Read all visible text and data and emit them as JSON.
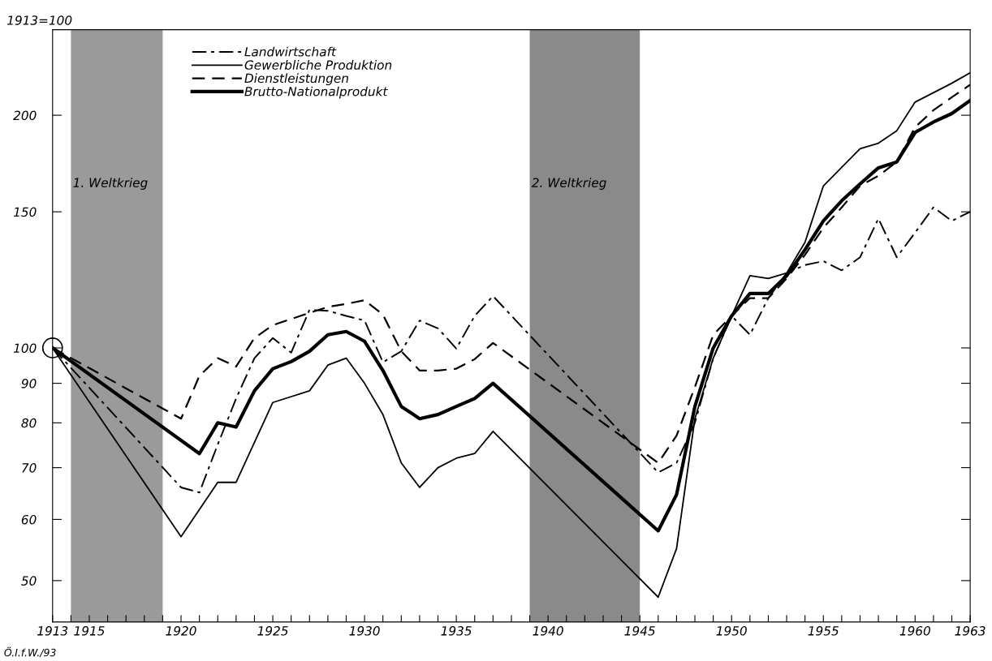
{
  "chart_data": {
    "type": "line",
    "ylabel": "1913=100",
    "annotations": [
      "Ö.I.f.W./93"
    ],
    "log": "y",
    "xlim": [
      1913,
      1963
    ],
    "xticks": [
      1913,
      {
        "value": 1914,
        "label": null
      },
      1915,
      {
        "value": 1916,
        "label": null
      },
      {
        "value": 1917,
        "label": null
      },
      {
        "value": 1918,
        "label": null
      },
      {
        "value": 1919,
        "label": null
      },
      1920,
      {
        "value": 1921,
        "label": null
      },
      {
        "value": 1922,
        "label": null
      },
      {
        "value": 1923,
        "label": null
      },
      {
        "value": 1924,
        "label": null
      },
      1925,
      {
        "value": 1926,
        "label": null
      },
      {
        "value": 1927,
        "label": null
      },
      {
        "value": 1928,
        "label": null
      },
      {
        "value": 1929,
        "label": null
      },
      1930,
      {
        "value": 1931,
        "label": null
      },
      {
        "value": 1932,
        "label": null
      },
      {
        "value": 1933,
        "label": null
      },
      {
        "value": 1934,
        "label": null
      },
      1935,
      {
        "value": 1936,
        "label": null
      },
      {
        "value": 1937,
        "label": null
      },
      {
        "value": 1938,
        "label": null
      },
      {
        "value": 1939,
        "label": null
      },
      1940,
      {
        "value": 1941,
        "label": null
      },
      {
        "value": 1942,
        "label": null
      },
      {
        "value": 1943,
        "label": null
      },
      {
        "value": 1944,
        "label": null
      },
      1945,
      {
        "value": 1946,
        "label": null
      },
      {
        "value": 1947,
        "label": null
      },
      {
        "value": 1948,
        "label": null
      },
      {
        "value": 1949,
        "label": null
      },
      1950,
      {
        "value": 1951,
        "label": null
      },
      {
        "value": 1952,
        "label": null
      },
      {
        "value": 1953,
        "label": null
      },
      {
        "value": 1954,
        "label": null
      },
      1955,
      {
        "value": 1956,
        "label": null
      },
      {
        "value": 1957,
        "label": null
      },
      {
        "value": 1958,
        "label": null
      },
      {
        "value": 1959,
        "label": null
      },
      1960,
      {
        "value": 1961,
        "label": null
      },
      {
        "value": 1962,
        "label": null
      },
      1963
    ],
    "ylim": [
      44.2,
      258
    ],
    "yticks": [
      50,
      60,
      70,
      80,
      90,
      100,
      150,
      200
    ],
    "grid": false,
    "legend": "top left",
    "marker": "none",
    "bands": [
      {
        "axis": "x",
        "from": 1914,
        "to": 1919,
        "label": "1. Weltkrieg",
        "color": "#9a9a9a"
      },
      {
        "axis": "x",
        "from": 1939,
        "to": 1945,
        "label": "2. Weltkrieg",
        "color": "#8a8a8a"
      }
    ],
    "series": [
      {
        "name": "Landwirtschaft",
        "color": "#000000",
        "line_style": "dashdot",
        "x": [
          1913,
          1920,
          1921,
          1922,
          1923,
          1924,
          1925,
          1926,
          1927,
          1928,
          1929,
          1930,
          1931,
          1932,
          1933,
          1934,
          1935,
          1936,
          1937,
          1946,
          1947,
          1948,
          1949,
          1950,
          1951,
          1952,
          1953,
          1954,
          1955,
          1956,
          1957,
          1958,
          1959,
          1960,
          1961,
          1962,
          1963
        ],
        "values": [
          100,
          66,
          65,
          75,
          86,
          97,
          103,
          98.6,
          112,
          111.7,
          110,
          108.5,
          95.8,
          99,
          108.5,
          106,
          99.8,
          110,
          116.7,
          69,
          71,
          80,
          97,
          110,
          104,
          116,
          125,
          128,
          129.5,
          126,
          131,
          147,
          131,
          141,
          152,
          146,
          150
        ]
      },
      {
        "name": "Gewerbliche Produktion",
        "color": "#000000",
        "line_style": "solid",
        "x": [
          1913,
          1920,
          1922,
          1923,
          1925,
          1927,
          1928,
          1929,
          1930,
          1931,
          1932,
          1933,
          1934,
          1935,
          1936,
          1937,
          1946,
          1947,
          1948,
          1949,
          1950,
          1951,
          1952,
          1953,
          1954,
          1955,
          1957,
          1958,
          1959,
          1960,
          1962,
          1963
        ],
        "values": [
          100,
          57,
          67,
          67,
          85,
          88,
          95,
          97,
          90,
          82,
          71,
          66,
          70,
          72,
          73,
          78,
          47.6,
          55,
          81,
          97,
          110,
          124,
          123,
          125,
          137,
          162,
          181,
          184,
          191,
          208,
          220,
          227
        ]
      },
      {
        "name": "Dienstleistungen",
        "color": "#000000",
        "line_style": "dashed",
        "x": [
          1913,
          1920,
          1921,
          1922,
          1923,
          1924,
          1925,
          1926,
          1927,
          1928,
          1929,
          1930,
          1931,
          1932,
          1933,
          1934,
          1935,
          1936,
          1937,
          1946,
          1947,
          1948,
          1949,
          1950,
          1951,
          1952,
          1953,
          1954,
          1955,
          1956,
          1957,
          1958,
          1959,
          1960,
          1961,
          1962,
          1963
        ],
        "values": [
          100,
          81,
          92,
          97,
          94.6,
          103,
          107,
          109,
          111,
          113,
          114,
          115.3,
          110.4,
          99,
          93.5,
          93.5,
          94,
          96.7,
          101.5,
          71,
          77,
          89,
          104,
          110,
          116,
          116,
          123,
          132,
          143,
          152,
          162,
          167,
          174,
          193,
          203,
          211,
          219
        ]
      },
      {
        "name": "Brutto-Nationalprodukt",
        "color": "#000000",
        "line_style": "solid",
        "x": [
          1913,
          1921,
          1922,
          1923,
          1924,
          1925,
          1926,
          1927,
          1928,
          1929,
          1930,
          1931,
          1932,
          1933,
          1934,
          1935,
          1936,
          1937,
          1946,
          1947,
          1948,
          1949,
          1950,
          1951,
          1952,
          1953,
          1954,
          1955,
          1956,
          1957,
          1958,
          1959,
          1960,
          1961,
          1962,
          1963
        ],
        "values": [
          100,
          73,
          80,
          79,
          88,
          94,
          96,
          99,
          104,
          105,
          102,
          93.5,
          84,
          81,
          82,
          84,
          86,
          90,
          58,
          64.6,
          84,
          100,
          110,
          117.6,
          117.6,
          124,
          134,
          146,
          155,
          163,
          171,
          174,
          190,
          196,
          201,
          209
        ]
      },
      {
        "type": "scatter",
        "marker": "circle",
        "color": "#000000",
        "x": [
          1913
        ],
        "values": [
          100
        ]
      }
    ]
  }
}
